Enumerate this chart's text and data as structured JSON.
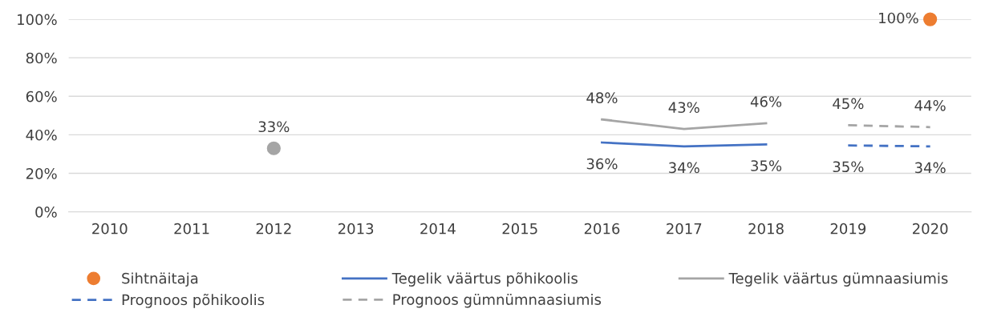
{
  "chart_data": {
    "type": "line",
    "categories": [
      "2010",
      "2011",
      "2012",
      "2013",
      "2014",
      "2015",
      "2016",
      "2017",
      "2018",
      "2019",
      "2020"
    ],
    "series": [
      {
        "name": "Sihtnäitaja",
        "type": "scatter",
        "marker": "circle",
        "color": "#ed7d31",
        "values": [
          null,
          null,
          null,
          null,
          null,
          null,
          null,
          null,
          null,
          null,
          100
        ],
        "value_labels": [
          null,
          null,
          null,
          null,
          null,
          null,
          null,
          null,
          null,
          null,
          "100%"
        ]
      },
      {
        "name": "Tegelik väärtus põhikoolis",
        "color": "#4472c4",
        "line_style": "solid",
        "values": [
          null,
          null,
          null,
          null,
          null,
          null,
          36,
          34,
          35,
          null,
          null
        ],
        "value_labels": [
          null,
          null,
          null,
          null,
          null,
          null,
          "36%",
          "34%",
          "35%",
          null,
          null
        ]
      },
      {
        "name": "Tegelik väärtus gümnaasiumis",
        "color": "#a5a5a5",
        "line_style": "solid",
        "values": [
          null,
          null,
          null,
          null,
          null,
          null,
          48,
          43,
          46,
          null,
          null
        ],
        "value_labels": [
          null,
          null,
          null,
          null,
          null,
          null,
          "48%",
          "43%",
          "46%",
          null,
          null
        ]
      },
      {
        "type": "scatter",
        "marker": "circle",
        "color": "#a5a5a5",
        "values": [
          null,
          null,
          33,
          null,
          null,
          null,
          null,
          null,
          null,
          null,
          null
        ],
        "value_labels": [
          null,
          null,
          "33%",
          null,
          null,
          null,
          null,
          null,
          null,
          null,
          null
        ]
      },
      {
        "name": "Prognoos põhikoolis",
        "color": "#4472c4",
        "line_style": "dashed",
        "values": [
          null,
          null,
          null,
          null,
          null,
          null,
          null,
          null,
          null,
          34.5,
          34
        ],
        "value_labels": [
          null,
          null,
          null,
          null,
          null,
          null,
          null,
          null,
          null,
          "35%",
          "34%"
        ]
      },
      {
        "name": "Prognoos gümnümnaasiumis",
        "color": "#a5a5a5",
        "line_style": "dashed",
        "values": [
          null,
          null,
          null,
          null,
          null,
          null,
          null,
          null,
          null,
          45,
          44
        ],
        "value_labels": [
          null,
          null,
          null,
          null,
          null,
          null,
          null,
          null,
          null,
          "45%",
          "44%"
        ]
      }
    ],
    "ylim": [
      0,
      100
    ],
    "yticks": [
      {
        "value": 0,
        "label": "0%"
      },
      {
        "value": 20,
        "label": "20%"
      },
      {
        "value": 40,
        "label": "40%"
      },
      {
        "value": 60,
        "label": "60%"
      },
      {
        "value": 80,
        "label": "80%"
      },
      {
        "value": 100,
        "label": "100%"
      }
    ],
    "grid": "y",
    "legend": "bottom",
    "marker": "none"
  }
}
